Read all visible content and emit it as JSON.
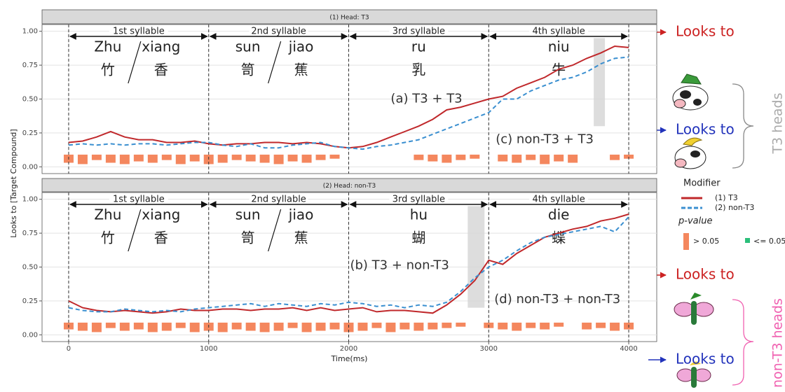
{
  "chart_data": {
    "type": "line",
    "y_label": "Looks to [Target Compound]",
    "x_label": "Time(ms)",
    "xlim": [
      -190,
      4200
    ],
    "ylim": [
      -0.05,
      1.05
    ],
    "xticks": [
      0,
      1000,
      2000,
      3000,
      4000
    ],
    "yticks": [
      {
        "value": 0,
        "label": "0.00"
      },
      {
        "value": 0.25,
        "label": "0.25"
      },
      {
        "value": 0.5,
        "label": "0.50"
      },
      {
        "value": 0.75,
        "label": "0.75"
      },
      {
        "value": 1,
        "label": "1.00"
      }
    ],
    "grid": true,
    "x": [
      0,
      100,
      200,
      300,
      400,
      500,
      600,
      700,
      800,
      900,
      1000,
      1100,
      1200,
      1300,
      1400,
      1500,
      1600,
      1700,
      1800,
      1900,
      2000,
      2100,
      2200,
      2300,
      2400,
      2500,
      2600,
      2700,
      2800,
      2900,
      3000,
      3100,
      3200,
      3300,
      3400,
      3500,
      3600,
      3700,
      3800,
      3900,
      4000
    ],
    "boundaries": [
      0,
      1000,
      2000,
      3000,
      4000
    ],
    "bar_top": 0.09,
    "legend_title": "Modifier",
    "series": [
      {
        "name": "(1) T3",
        "color": "#c0282b",
        "dashed": false
      },
      {
        "name": "(2) non-T3",
        "color": "#3a8fd0",
        "dashed": true
      }
    ],
    "pvalue_title": "p-value",
    "pvalue_legend": [
      {
        "label": "> 0.05",
        "color": "#f4875e"
      },
      {
        "label": "<= 0.05",
        "color": "#2bbf7a"
      }
    ],
    "panels": [
      {
        "title": "(1) Head: T3",
        "series_values": [
          [
            0.18,
            0.19,
            0.22,
            0.26,
            0.22,
            0.2,
            0.2,
            0.18,
            0.18,
            0.19,
            0.17,
            0.16,
            0.17,
            0.17,
            0.18,
            0.18,
            0.17,
            0.18,
            0.17,
            0.15,
            0.14,
            0.15,
            0.18,
            0.22,
            0.26,
            0.3,
            0.35,
            0.42,
            0.44,
            0.47,
            0.5,
            0.52,
            0.58,
            0.62,
            0.66,
            0.72,
            0.75,
            0.8,
            0.84,
            0.89,
            0.88
          ],
          [
            0.16,
            0.17,
            0.16,
            0.17,
            0.16,
            0.17,
            0.17,
            0.16,
            0.17,
            0.18,
            0.18,
            0.16,
            0.15,
            0.17,
            0.14,
            0.14,
            0.16,
            0.17,
            0.18,
            0.15,
            0.14,
            0.13,
            0.15,
            0.16,
            0.18,
            0.2,
            0.24,
            0.28,
            0.32,
            0.36,
            0.4,
            0.5,
            0.5,
            0.56,
            0.6,
            0.64,
            0.66,
            0.7,
            0.76,
            0.8,
            0.81
          ]
        ],
        "pvalue_bars": [
          0.03,
          0.02,
          0.05,
          0.03,
          0.02,
          0.04,
          0.03,
          0.05,
          0.02,
          0.04,
          0.02,
          0.03,
          0.05,
          0.04,
          0.03,
          0.02,
          0.04,
          0.03,
          0.05,
          0.06,
          null,
          null,
          null,
          null,
          null,
          0.05,
          0.04,
          0.03,
          0.05,
          0.06,
          null,
          0.04,
          0.03,
          0.05,
          0.02,
          0.04,
          0.03,
          null,
          null,
          0.05,
          0.06
        ],
        "shade": {
          "x": [
            3750,
            3830
          ],
          "y": [
            0.3,
            0.95
          ]
        },
        "syllables": [
          {
            "label": "1st syllable",
            "words": [
              {
                "pinyin": "Zhu",
                "hanzi": "竹"
              },
              {
                "pinyin": "xiang",
                "hanzi": "香"
              }
            ]
          },
          {
            "label": "2nd syllable",
            "words": [
              {
                "pinyin": "sun",
                "hanzi": "笥"
              },
              {
                "pinyin": "jiao",
                "hanzi": "蕉"
              }
            ]
          },
          {
            "label": "3rd syllable",
            "words": [
              {
                "pinyin": "ru",
                "hanzi": "乳"
              }
            ]
          },
          {
            "label": "4th syllable",
            "words": [
              {
                "pinyin": "niu",
                "hanzi": "牛"
              }
            ]
          }
        ],
        "conditions": [
          "(a) T3 + T3",
          "(c) non-T3 + T3"
        ]
      },
      {
        "title": "(2) Head: non-T3",
        "series_values": [
          [
            0.25,
            0.2,
            0.18,
            0.17,
            0.18,
            0.17,
            0.16,
            0.17,
            0.19,
            0.18,
            0.18,
            0.19,
            0.19,
            0.18,
            0.19,
            0.19,
            0.2,
            0.18,
            0.2,
            0.18,
            0.19,
            0.2,
            0.17,
            0.18,
            0.18,
            0.17,
            0.16,
            0.22,
            0.3,
            0.4,
            0.55,
            0.52,
            0.6,
            0.66,
            0.72,
            0.75,
            0.78,
            0.8,
            0.84,
            0.86,
            0.89
          ],
          [
            0.2,
            0.18,
            0.17,
            0.17,
            0.19,
            0.18,
            0.17,
            0.18,
            0.17,
            0.19,
            0.2,
            0.21,
            0.22,
            0.23,
            0.21,
            0.23,
            0.22,
            0.21,
            0.23,
            0.22,
            0.24,
            0.23,
            0.21,
            0.22,
            0.2,
            0.22,
            0.21,
            0.24,
            0.32,
            0.42,
            0.5,
            0.55,
            0.62,
            0.68,
            0.72,
            0.74,
            0.76,
            0.78,
            0.8,
            0.76,
            0.87
          ]
        ],
        "pvalue_bars": [
          0.04,
          0.03,
          0.02,
          0.05,
          0.03,
          0.04,
          0.02,
          0.03,
          0.05,
          0.02,
          0.03,
          0.02,
          0.04,
          0.03,
          0.02,
          0.03,
          0.05,
          0.02,
          0.03,
          0.04,
          0.02,
          0.03,
          0.05,
          0.02,
          0.04,
          0.03,
          0.04,
          0.05,
          0.06,
          null,
          0.05,
          0.04,
          0.03,
          0.05,
          0.04,
          0.06,
          null,
          0.04,
          0.05,
          0.03,
          0.04
        ],
        "shade": {
          "x": [
            2850,
            2970
          ],
          "y": [
            0.2,
            0.95
          ]
        },
        "syllables": [
          {
            "label": "1st syllable",
            "words": [
              {
                "pinyin": "Zhu",
                "hanzi": "竹"
              },
              {
                "pinyin": "xiang",
                "hanzi": "香"
              }
            ]
          },
          {
            "label": "2nd syllable",
            "words": [
              {
                "pinyin": "sun",
                "hanzi": "笥"
              },
              {
                "pinyin": "jiao",
                "hanzi": "蕉"
              }
            ]
          },
          {
            "label": "3rd syllable",
            "words": [
              {
                "pinyin": "hu",
                "hanzi": "蝴"
              }
            ]
          },
          {
            "label": "4th syllable",
            "words": [
              {
                "pinyin": "die",
                "hanzi": "蝶"
              }
            ]
          }
        ],
        "conditions": [
          "(b) T3 + non-T3",
          "(d) non-T3 + non-T3"
        ]
      }
    ],
    "side": {
      "looks_to": [
        "Looks to",
        "Looks to",
        "Looks to",
        "Looks to"
      ],
      "groups": [
        "T3 heads",
        "non-T3 heads"
      ]
    }
  }
}
